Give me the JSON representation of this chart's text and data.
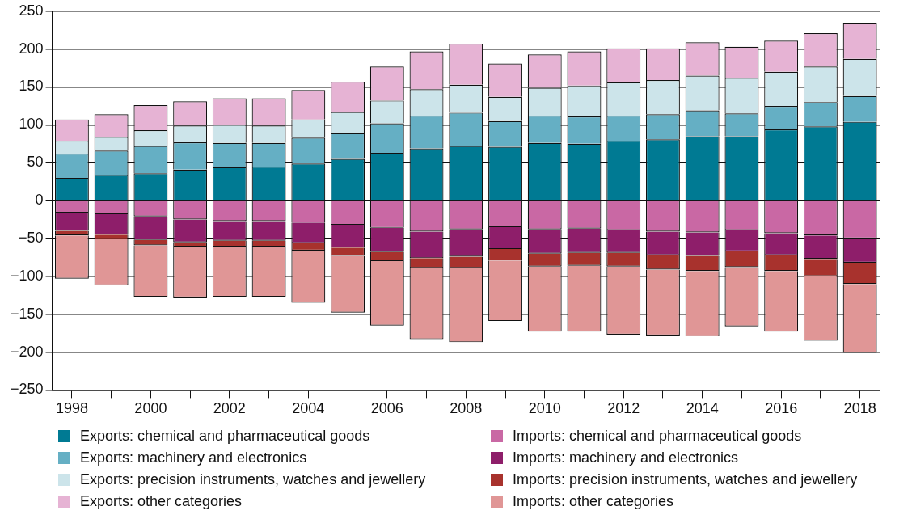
{
  "chart_data": {
    "type": "bar",
    "stacked": true,
    "legend": "bottom",
    "grid": "y",
    "categories": [
      "1998",
      null,
      "2000",
      null,
      "2002",
      null,
      "2004",
      null,
      "2006",
      null,
      "2008",
      null,
      "2010",
      null,
      "2012",
      null,
      "2014",
      null,
      "2016",
      null,
      "2018"
    ],
    "ylim": [
      -250,
      250
    ],
    "yticks": [
      -250,
      -200,
      -150,
      -100,
      -50,
      0,
      50,
      100,
      150,
      200,
      250
    ],
    "series": [
      {
        "name": "Exports: chemical and pharmaceutical goods",
        "color": "#007a93",
        "values": [
          30,
          34,
          36,
          41,
          44,
          45,
          49,
          55,
          63,
          69,
          72,
          71,
          76,
          75,
          79,
          81,
          85,
          85,
          94,
          98,
          104
        ]
      },
      {
        "name": "Exports: machinery and electronics",
        "color": "#65afc4",
        "values": [
          32,
          32,
          36,
          36,
          32,
          31,
          34,
          34,
          39,
          43,
          44,
          34,
          36,
          36,
          33,
          33,
          34,
          30,
          31,
          32,
          34
        ]
      },
      {
        "name": "Exports: precision instruments, watches and jewellery",
        "color": "#cce4ea",
        "values": [
          17,
          18,
          21,
          22,
          24,
          23,
          24,
          28,
          30,
          35,
          37,
          32,
          37,
          41,
          44,
          45,
          46,
          47,
          45,
          47,
          49
        ]
      },
      {
        "name": "Exports: other categories",
        "color": "#e6b3d4",
        "values": [
          28,
          30,
          33,
          32,
          35,
          36,
          39,
          40,
          45,
          50,
          54,
          44,
          44,
          45,
          45,
          42,
          44,
          41,
          41,
          44,
          47
        ]
      },
      {
        "name": "Imports: chemical and pharmaceutical goods",
        "color": "#c968a4",
        "values": [
          -16,
          -18,
          -21,
          -25,
          -27,
          -27,
          -29,
          -32,
          -36,
          -41,
          -38,
          -35,
          -38,
          -37,
          -39,
          -41,
          -42,
          -39,
          -43,
          -46,
          -50
        ]
      },
      {
        "name": "Imports: machinery and electronics",
        "color": "#8e1e6a",
        "values": [
          -24,
          -27,
          -31,
          -30,
          -26,
          -26,
          -27,
          -30,
          -32,
          -35,
          -36,
          -29,
          -32,
          -32,
          -30,
          -31,
          -31,
          -28,
          -29,
          -31,
          -32
        ]
      },
      {
        "name": "Imports: precision instruments, watches and jewellery",
        "color": "#a8322d",
        "values": [
          -6,
          -6,
          -7,
          -6,
          -8,
          -8,
          -10,
          -11,
          -12,
          -13,
          -15,
          -15,
          -17,
          -17,
          -18,
          -19,
          -20,
          -21,
          -21,
          -23,
          -28
        ]
      },
      {
        "name": "Imports: other categories",
        "color": "#e09696",
        "values": [
          -57,
          -61,
          -68,
          -67,
          -66,
          -66,
          -69,
          -75,
          -85,
          -94,
          -98,
          -80,
          -86,
          -87,
          -90,
          -87,
          -86,
          -78,
          -80,
          -85,
          -91
        ]
      }
    ]
  }
}
